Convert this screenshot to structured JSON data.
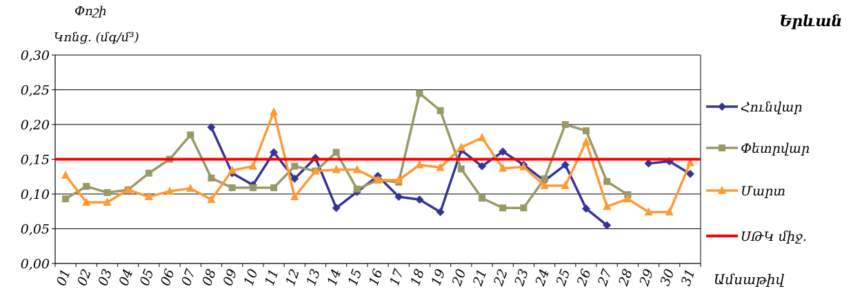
{
  "chart_data": {
    "type": "line",
    "title": "Երևան",
    "ylabel_line1": "Փոշի",
    "ylabel_line2": "Կոնց. (մգ/մ³)",
    "xlabel": "Ամսաթիվ",
    "ylim": [
      0,
      0.3
    ],
    "yticks": [
      "0,00",
      "0,05",
      "0,10",
      "0,15",
      "0,20",
      "0,25",
      "0,30"
    ],
    "categories": [
      "01",
      "02",
      "03",
      "04",
      "05",
      "06",
      "07",
      "08",
      "09",
      "10",
      "11",
      "12",
      "13",
      "14",
      "15",
      "16",
      "17",
      "18",
      "19",
      "20",
      "21",
      "22",
      "23",
      "24",
      "25",
      "26",
      "27",
      "28",
      "29",
      "30",
      "31"
    ],
    "grid": true,
    "legend_position": "right",
    "series": [
      {
        "name": "Հունվար",
        "color": "#333399",
        "marker": "diamond",
        "values": [
          null,
          null,
          null,
          null,
          null,
          null,
          null,
          0.196,
          0.13,
          0.113,
          0.16,
          0.122,
          0.152,
          0.08,
          0.103,
          0.126,
          0.096,
          0.092,
          0.074,
          0.163,
          0.14,
          0.161,
          0.142,
          0.119,
          0.142,
          0.079,
          0.055,
          null,
          0.144,
          0.147,
          0.129
        ]
      },
      {
        "name": "Փետրվար",
        "color": "#999966",
        "marker": "square",
        "values": [
          0.093,
          0.111,
          0.102,
          0.106,
          0.13,
          0.15,
          0.185,
          0.123,
          0.109,
          0.109,
          0.109,
          0.14,
          0.133,
          0.16,
          0.107,
          0.12,
          0.117,
          0.245,
          0.22,
          0.136,
          0.094,
          0.08,
          0.08,
          0.122,
          0.2,
          0.191,
          0.118,
          0.099,
          null,
          null,
          null
        ]
      },
      {
        "name": "Մարտ",
        "color": "#ff9933",
        "marker": "triangle",
        "values": [
          0.127,
          0.088,
          0.088,
          0.106,
          0.096,
          0.104,
          0.108,
          0.092,
          0.134,
          0.14,
          0.218,
          0.096,
          0.133,
          0.135,
          0.135,
          0.12,
          0.12,
          0.142,
          0.138,
          0.167,
          0.181,
          0.137,
          0.139,
          0.112,
          0.112,
          0.175,
          0.082,
          0.093,
          0.074,
          0.074,
          0.145
        ]
      },
      {
        "name": "ՍԹԿ միջ.",
        "color": "#ff0000",
        "marker": "none",
        "constant": 0.15
      }
    ]
  }
}
